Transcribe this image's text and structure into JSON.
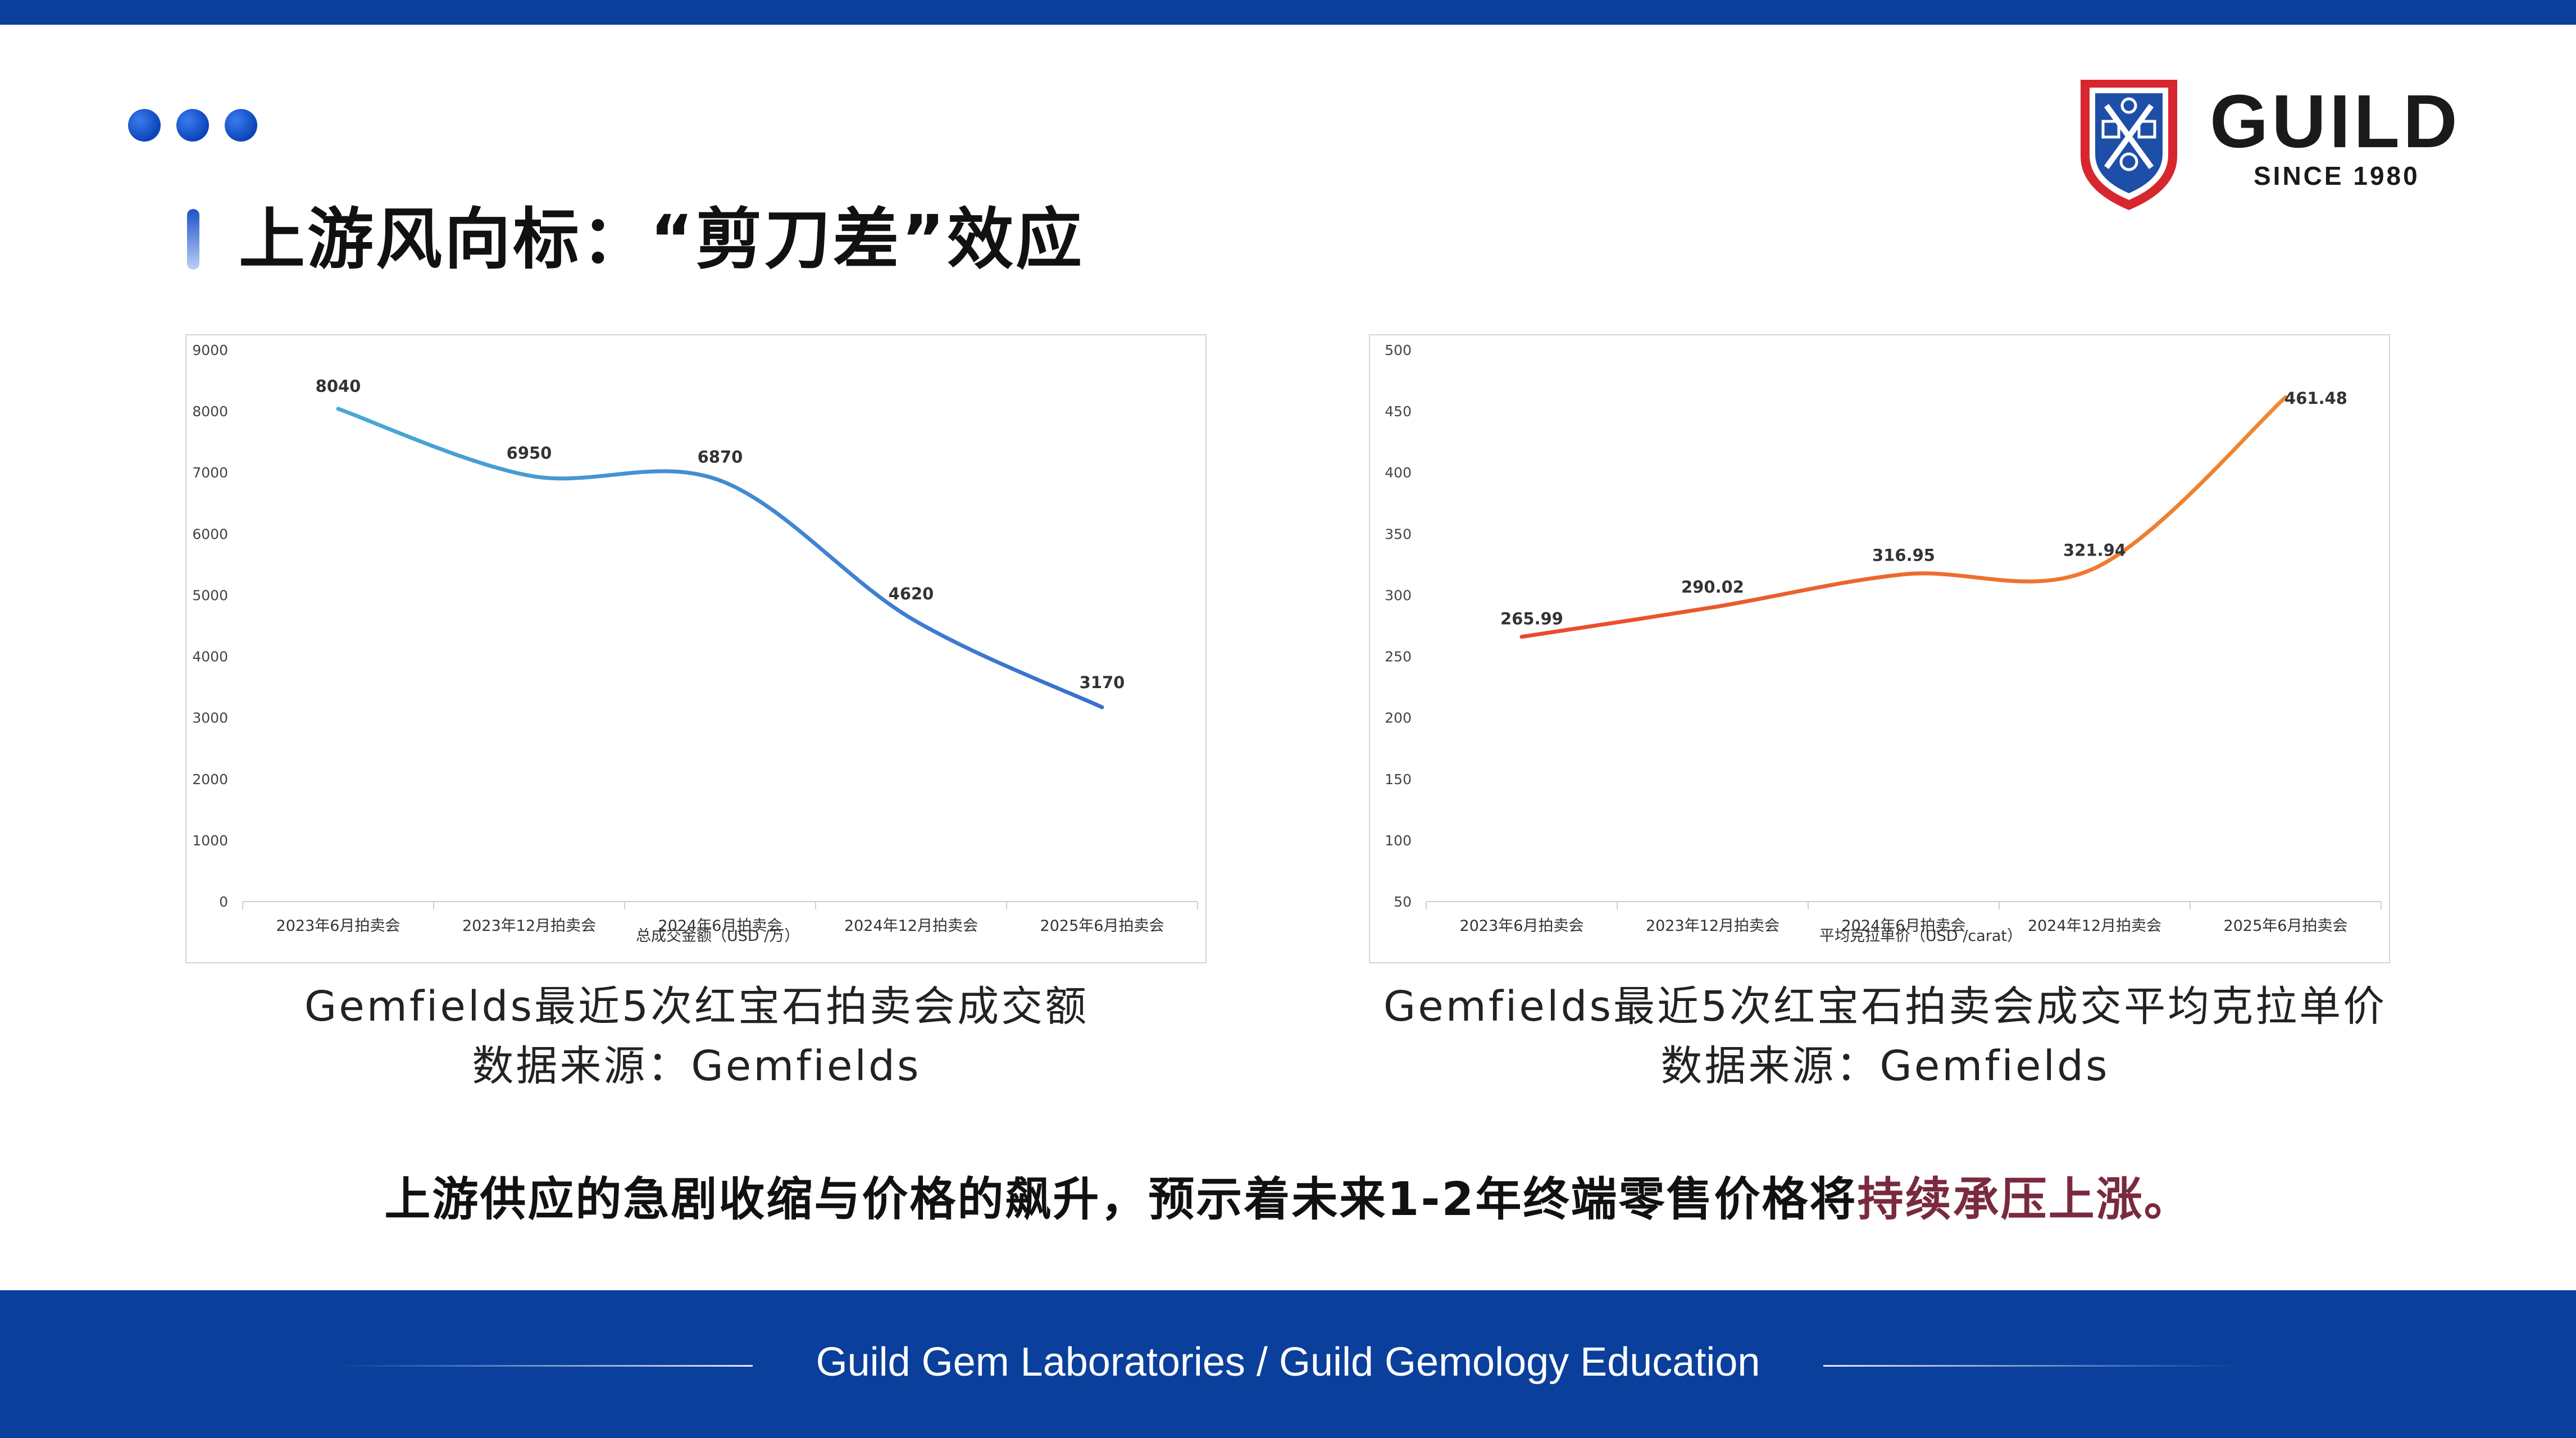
{
  "header": {
    "title": "上游风向标：“剪刀差”效应",
    "logo_text": "GUILD",
    "logo_since": "SINCE 1980"
  },
  "colors": {
    "brand_blue": "#0a3f9c",
    "left_line_start": "#4aa9d6",
    "left_line_end": "#3a6ed0",
    "right_line_start": "#e64a2e",
    "right_line_end": "#f08a2e",
    "highlight": "#7a2a3e"
  },
  "chart_data": [
    {
      "type": "line",
      "categories": [
        "2023年6月拍卖会",
        "2023年12月拍卖会",
        "2024年6月拍卖会",
        "2024年12月拍卖会",
        "2025年6月拍卖会"
      ],
      "series": [
        {
          "name": "总成交金额（USD /万）",
          "values": [
            8040,
            6950,
            6870,
            4620,
            3170
          ]
        }
      ],
      "ylim": [
        0,
        9000
      ],
      "yticks": [
        0,
        1000,
        2000,
        3000,
        4000,
        5000,
        6000,
        7000,
        8000,
        9000
      ],
      "data_labels": [
        "8040",
        "6950",
        "6870",
        "4620",
        "3170"
      ],
      "grid": false,
      "legend": "bottom"
    },
    {
      "type": "line",
      "categories": [
        "2023年6月拍卖会",
        "2023年12月拍卖会",
        "2024年6月拍卖会",
        "2024年12月拍卖会",
        "2025年6月拍卖会"
      ],
      "series": [
        {
          "name": "平均克拉单价（USD /carat）",
          "values": [
            265.99,
            290.02,
            316.95,
            321.94,
            461.48
          ]
        }
      ],
      "ylim": [
        50,
        500
      ],
      "yticks": [
        50,
        100,
        150,
        200,
        250,
        300,
        350,
        400,
        450,
        500
      ],
      "data_labels": [
        "265.99",
        "290.02",
        "316.95",
        "321.94",
        "461.48"
      ],
      "grid": false,
      "legend": "bottom"
    }
  ],
  "captions": {
    "left_line1": "Gemfields最近5次红宝石拍卖会成交额",
    "left_line2": "数据来源：Gemfields",
    "right_line1": "Gemfields最近5次红宝石拍卖会成交平均克拉单价",
    "right_line2": "数据来源：Gemfields"
  },
  "conclusion": {
    "main": "上游供应的急剧收缩与价格的飙升，预示着未来1-2年终端零售价格将",
    "highlight": "持续承压上涨。"
  },
  "footer": {
    "text": "Guild Gem Laboratories / Guild Gemology Education"
  }
}
